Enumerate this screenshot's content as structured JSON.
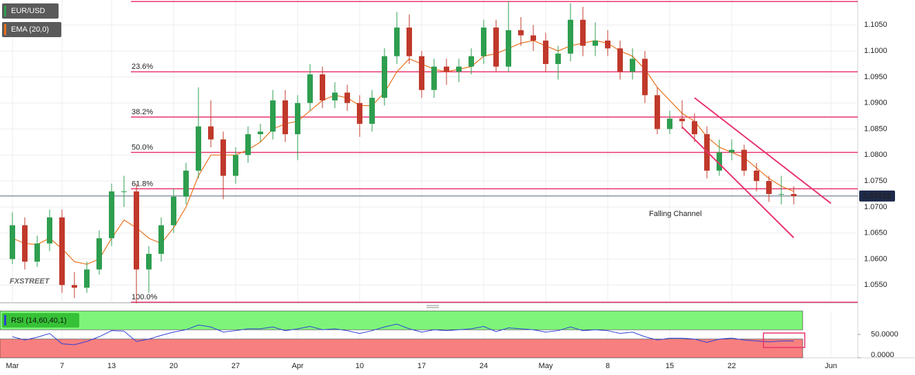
{
  "chart_data": [
    {
      "type": "candlestick",
      "title": "EUR/USD",
      "x": [
        "Mar 1",
        "Mar 2",
        "Mar 3",
        "Mar 6",
        "Mar 7",
        "Mar 8",
        "Mar 9",
        "Mar 10",
        "Mar 13",
        "Mar 14",
        "Mar 15",
        "Mar 16",
        "Mar 17",
        "Mar 20",
        "Mar 21",
        "Mar 22",
        "Mar 23",
        "Mar 24",
        "Mar 27",
        "Mar 28",
        "Mar 29",
        "Mar 30",
        "Mar 31",
        "Apr 3",
        "Apr 4",
        "Apr 5",
        "Apr 6",
        "Apr 7",
        "Apr 10",
        "Apr 11",
        "Apr 12",
        "Apr 13",
        "Apr 14",
        "Apr 17",
        "Apr 18",
        "Apr 19",
        "Apr 20",
        "Apr 21",
        "Apr 24",
        "Apr 25",
        "Apr 26",
        "Apr 27",
        "Apr 28",
        "May 1",
        "May 2",
        "May 3",
        "May 4",
        "May 5",
        "May 8",
        "May 9",
        "May 10",
        "May 11",
        "May 12",
        "May 15",
        "May 16",
        "May 17",
        "May 18",
        "May 19",
        "May 22",
        "May 23",
        "May 24",
        "May 25",
        "May 26",
        "May 29"
      ],
      "open": [
        1.06,
        1.0665,
        1.0595,
        1.063,
        1.068,
        1.055,
        1.0545,
        1.058,
        1.064,
        1.073,
        1.073,
        1.058,
        1.061,
        1.0665,
        1.072,
        1.077,
        1.0855,
        1.083,
        1.076,
        1.08,
        1.084,
        1.0845,
        1.0905,
        1.084,
        1.09,
        1.0955,
        1.0905,
        1.092,
        1.09,
        1.086,
        1.091,
        1.099,
        1.1045,
        1.099,
        1.0925,
        1.097,
        1.096,
        1.097,
        1.099,
        1.1045,
        1.097,
        1.104,
        1.103,
        1.102,
        1.0975,
        1.0995,
        1.106,
        1.101,
        1.102,
        1.1005,
        1.096,
        1.0985,
        1.0915,
        1.085,
        1.087,
        1.0865,
        1.084,
        1.077,
        1.0805,
        1.081,
        1.077,
        1.075,
        1.0725,
        1.0725
      ],
      "high": [
        1.069,
        1.068,
        1.0645,
        1.0695,
        1.0695,
        1.0575,
        1.0595,
        1.0655,
        1.0745,
        1.076,
        1.0745,
        1.0625,
        1.068,
        1.0735,
        1.0785,
        1.093,
        1.0905,
        1.0845,
        1.0815,
        1.0855,
        1.086,
        1.0925,
        1.0925,
        1.0915,
        1.0975,
        1.097,
        1.094,
        1.0935,
        1.0915,
        1.0925,
        1.1005,
        1.1075,
        1.107,
        1.1,
        1.0985,
        1.0985,
        1.0985,
        1.1005,
        1.106,
        1.106,
        1.1095,
        1.1065,
        1.105,
        1.1035,
        1.101,
        1.1092,
        1.1085,
        1.1055,
        1.104,
        1.102,
        1.1005,
        1.1,
        1.093,
        1.0885,
        1.0905,
        1.088,
        1.0855,
        1.083,
        1.083,
        1.082,
        1.0785,
        1.076,
        1.076,
        1.074
      ],
      "low": [
        1.059,
        1.058,
        1.0585,
        1.0615,
        1.0535,
        1.0525,
        1.0535,
        1.057,
        1.0625,
        1.07,
        1.0515,
        1.0535,
        1.0595,
        1.065,
        1.0705,
        1.0755,
        1.0815,
        1.0715,
        1.0745,
        1.0785,
        1.0825,
        1.083,
        1.0825,
        1.079,
        1.0885,
        1.089,
        1.089,
        1.0885,
        1.0835,
        1.0845,
        1.0895,
        1.0975,
        1.0975,
        1.091,
        1.091,
        1.0935,
        1.094,
        1.0955,
        1.0975,
        1.096,
        1.096,
        1.101,
        1.1,
        1.096,
        1.0945,
        1.098,
        1.099,
        1.099,
        1.099,
        1.0945,
        1.0945,
        1.09,
        1.084,
        1.084,
        1.085,
        1.0825,
        1.0755,
        1.076,
        1.079,
        1.076,
        1.073,
        1.071,
        1.0705,
        1.0705
      ],
      "close": [
        1.0665,
        1.0595,
        1.063,
        1.068,
        1.055,
        1.0545,
        1.058,
        1.064,
        1.073,
        1.073,
        1.058,
        1.061,
        1.0665,
        1.072,
        1.077,
        1.0855,
        1.083,
        1.076,
        1.08,
        1.084,
        1.0845,
        1.0905,
        1.084,
        1.09,
        1.0955,
        1.0905,
        1.092,
        1.09,
        1.086,
        1.091,
        1.099,
        1.1045,
        1.099,
        1.0925,
        1.097,
        1.096,
        1.097,
        1.099,
        1.1045,
        1.097,
        1.104,
        1.103,
        1.102,
        1.0975,
        1.0995,
        1.106,
        1.101,
        1.102,
        1.1005,
        1.096,
        1.0985,
        1.0915,
        1.085,
        1.087,
        1.0865,
        1.084,
        1.077,
        1.0805,
        1.081,
        1.077,
        1.075,
        1.0725,
        1.0725,
        1.0721
      ],
      "color_up": "#2e9e4f",
      "color_down": "#c0392b",
      "series": [
        {
          "name": "EMA (20,0)",
          "color": "#e8711a",
          "values": [
            1.064,
            1.063,
            1.0628,
            1.064,
            1.062,
            1.0595,
            1.059,
            1.06,
            1.064,
            1.0675,
            1.066,
            1.064,
            1.063,
            1.066,
            1.07,
            1.076,
            1.08,
            1.08,
            1.08,
            1.081,
            1.0825,
            1.085,
            1.086,
            1.0865,
            1.0885,
            1.0905,
            1.0915,
            1.091,
            1.0895,
            1.0895,
            1.092,
            1.096,
            1.0985,
            1.0975,
            1.0965,
            1.096,
            1.0965,
            1.097,
            1.099,
            1.0995,
            1.1005,
            1.1015,
            1.102,
            1.101,
            1.1,
            1.101,
            1.1015,
            1.102,
            1.1015,
            1.1,
            1.099,
            1.0965,
            1.093,
            1.0905,
            1.088,
            1.0865,
            1.0835,
            1.0815,
            1.0805,
            1.0795,
            1.0775,
            1.0755,
            1.074,
            1.073
          ]
        }
      ],
      "ylim": [
        1.0516,
        1.1098
      ],
      "yticks": [
        {
          "value": 1.055,
          "label": "1.0550"
        },
        {
          "value": 1.06,
          "label": "1.0600"
        },
        {
          "value": 1.065,
          "label": "1.0650"
        },
        {
          "value": 1.07,
          "label": "1.0700"
        },
        {
          "value": 1.075,
          "label": "1.0750"
        },
        {
          "value": 1.08,
          "label": "1.0800"
        },
        {
          "value": 1.085,
          "label": "1.0850"
        },
        {
          "value": 1.09,
          "label": "1.0900"
        },
        {
          "value": 1.095,
          "label": "1.0950"
        },
        {
          "value": 1.1,
          "label": "1.1000"
        },
        {
          "value": 1.105,
          "label": "1.1050"
        }
      ],
      "xticks": [
        {
          "value": "Mar 1",
          "label": "Mar"
        },
        {
          "value": "Mar 7",
          "label": "7"
        },
        {
          "value": "Mar 13",
          "label": "13"
        },
        {
          "value": "Mar 20",
          "label": "20"
        },
        {
          "value": "Mar 27",
          "label": "27"
        },
        {
          "value": "Apr 3",
          "label": "Apr"
        },
        {
          "value": "Apr 10",
          "label": "10"
        },
        {
          "value": "Apr 17",
          "label": "17"
        },
        {
          "value": "Apr 24",
          "label": "24"
        },
        {
          "value": "May 1",
          "label": "May"
        },
        {
          "value": "May 8",
          "label": "8"
        },
        {
          "value": "May 15",
          "label": "15"
        },
        {
          "value": "May 22",
          "label": "22"
        },
        {
          "value": "Jun 1",
          "label": "Jun"
        }
      ],
      "grid": true,
      "level_color": "#e8336d",
      "levels": [
        {
          "value": 1.096,
          "label": "23.6%"
        },
        {
          "value": 1.0873,
          "label": "38.2%"
        },
        {
          "value": 1.0805,
          "label": "50.0%"
        },
        {
          "value": 1.0735,
          "label": "61.8%"
        },
        {
          "value": 1.0517,
          "label": "100.0%"
        }
      ],
      "top_line": 1.1095,
      "last_price": 1.07212,
      "last_price_color": "#1e2a4a",
      "channels": [
        {
          "x": [
            "May 17",
            "Jun 1"
          ],
          "values": [
            1.091,
            1.0707
          ]
        },
        {
          "x": [
            "May 16",
            "May 29"
          ],
          "values": [
            1.0854,
            1.0641
          ]
        }
      ],
      "annotation": "Falling Channel",
      "watermark": "FXSTREET"
    },
    {
      "type": "line",
      "series": [
        {
          "name": "RSI (14,60,40,1)",
          "color": "#2c3fd6",
          "values": [
            45,
            38,
            44,
            52,
            30,
            28,
            35,
            45,
            58,
            57,
            35,
            40,
            48,
            55,
            60,
            70,
            66,
            55,
            58,
            62,
            62,
            66,
            58,
            62,
            67,
            60,
            62,
            58,
            52,
            58,
            66,
            72,
            62,
            55,
            60,
            58,
            60,
            62,
            67,
            56,
            64,
            62,
            60,
            55,
            58,
            66,
            58,
            60,
            58,
            52,
            55,
            45,
            38,
            42,
            42,
            40,
            33,
            40,
            42,
            38,
            36,
            34,
            36,
            36
          ]
        }
      ],
      "ylim": [
        0,
        100
      ],
      "yticks": [
        {
          "value": 50,
          "label": "50.0000"
        },
        {
          "value": 0,
          "label": "0.0000"
        }
      ],
      "bands": [
        {
          "from": 60,
          "to": 100,
          "color": "#7ef57a"
        },
        {
          "from": 0,
          "to": 40,
          "color": "#f87f7f"
        }
      ]
    }
  ]
}
